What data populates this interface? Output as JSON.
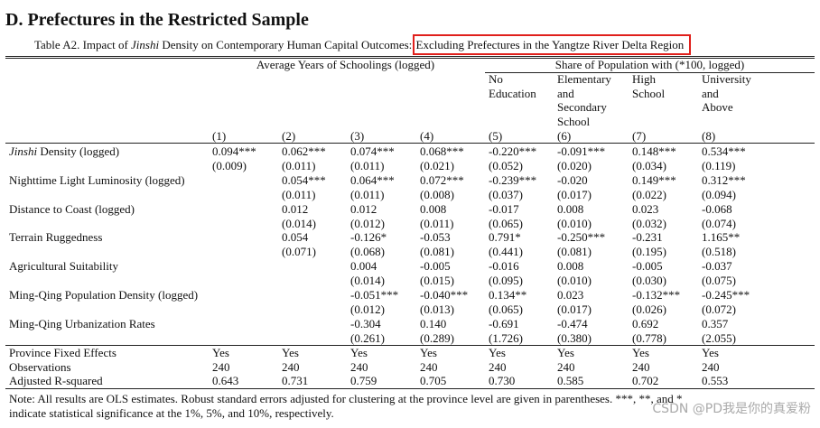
{
  "heading": "D. Prefectures in the Restricted Sample",
  "caption": {
    "prefix": "Table A2. Impact of ",
    "italic": "Jinshi",
    "middle": " Density on Contemporary Human Capital Outcomes: ",
    "highlight": "Excluding Prefectures in the Yangtze River Delta Region"
  },
  "table": {
    "group_headers": [
      "Average Years of Schoolings (logged)",
      "Share of Population with (*100, logged)"
    ],
    "sub_headers": [
      [
        "No",
        "Education"
      ],
      [
        "Elementary",
        "and",
        "Secondary",
        "School"
      ],
      [
        "High",
        "School"
      ],
      [
        "University",
        "and",
        "Above"
      ]
    ],
    "column_numbers": [
      "(1)",
      "(2)",
      "(3)",
      "(4)",
      "(5)",
      "(6)",
      "(7)",
      "(8)"
    ],
    "rows": [
      {
        "label_italic": "Jinshi",
        "label": " Density (logged)",
        "coef": [
          "0.094***",
          "0.062***",
          "0.074***",
          "0.068***",
          "-0.220***",
          "-0.091***",
          "0.148***",
          "0.534***"
        ],
        "se": [
          "(0.009)",
          "(0.011)",
          "(0.011)",
          "(0.021)",
          "(0.052)",
          "(0.020)",
          "(0.034)",
          "(0.119)"
        ]
      },
      {
        "label": "Nighttime Light Luminosity (logged)",
        "coef": [
          null,
          "0.054***",
          "0.064***",
          "0.072***",
          "-0.239***",
          "-0.020",
          "0.149***",
          "0.312***"
        ],
        "se": [
          null,
          "(0.011)",
          "(0.011)",
          "(0.008)",
          "(0.037)",
          "(0.017)",
          "(0.022)",
          "(0.094)"
        ]
      },
      {
        "label": "Distance to Coast (logged)",
        "coef": [
          null,
          "0.012",
          "0.012",
          "0.008",
          "-0.017",
          "0.008",
          "0.023",
          "-0.068"
        ],
        "se": [
          null,
          "(0.014)",
          "(0.012)",
          "(0.011)",
          "(0.065)",
          "(0.010)",
          "(0.032)",
          "(0.074)"
        ]
      },
      {
        "label": "Terrain Ruggedness",
        "coef": [
          null,
          "0.054",
          "-0.126*",
          "-0.053",
          "0.791*",
          "-0.250***",
          "-0.231",
          "1.165**"
        ],
        "se": [
          null,
          "(0.071)",
          "(0.068)",
          "(0.081)",
          "(0.441)",
          "(0.081)",
          "(0.195)",
          "(0.518)"
        ]
      },
      {
        "label": "Agricultural Suitability",
        "coef": [
          null,
          null,
          "0.004",
          "-0.005",
          "-0.016",
          "0.008",
          "-0.005",
          "-0.037"
        ],
        "se": [
          null,
          null,
          "(0.014)",
          "(0.015)",
          "(0.095)",
          "(0.010)",
          "(0.030)",
          "(0.075)"
        ]
      },
      {
        "label": "Ming-Qing Population Density (logged)",
        "coef": [
          null,
          null,
          "-0.051***",
          "-0.040***",
          "0.134**",
          "0.023",
          "-0.132***",
          "-0.245***"
        ],
        "se": [
          null,
          null,
          "(0.012)",
          "(0.013)",
          "(0.065)",
          "(0.017)",
          "(0.026)",
          "(0.072)"
        ]
      },
      {
        "label": "Ming-Qing Urbanization Rates",
        "coef": [
          null,
          null,
          "-0.304",
          "0.140",
          "-0.691",
          "-0.474",
          "0.692",
          "0.357"
        ],
        "se": [
          null,
          null,
          "(0.261)",
          "(0.289)",
          "(1.726)",
          "(0.380)",
          "(0.778)",
          "(2.055)"
        ]
      }
    ],
    "footer_rows": [
      {
        "label": "Province Fixed Effects",
        "values": [
          "Yes",
          "Yes",
          "Yes",
          "Yes",
          "Yes",
          "Yes",
          "Yes",
          "Yes"
        ]
      },
      {
        "label": "Observations",
        "values": [
          "240",
          "240",
          "240",
          "240",
          "240",
          "240",
          "240",
          "240"
        ]
      },
      {
        "label": "Adjusted R-squared",
        "values": [
          "0.643",
          "0.731",
          "0.759",
          "0.705",
          "0.730",
          "0.585",
          "0.702",
          "0.553"
        ]
      }
    ]
  },
  "note": [
    "Note: All results are OLS estimates. Robust standard errors adjusted for clustering at the province level are given in parentheses. ***, **, and *",
    "indicate statistical significance at the 1%, 5%, and 10%, respectively."
  ],
  "watermark": "CSDN @PD我是你的真爱粉"
}
